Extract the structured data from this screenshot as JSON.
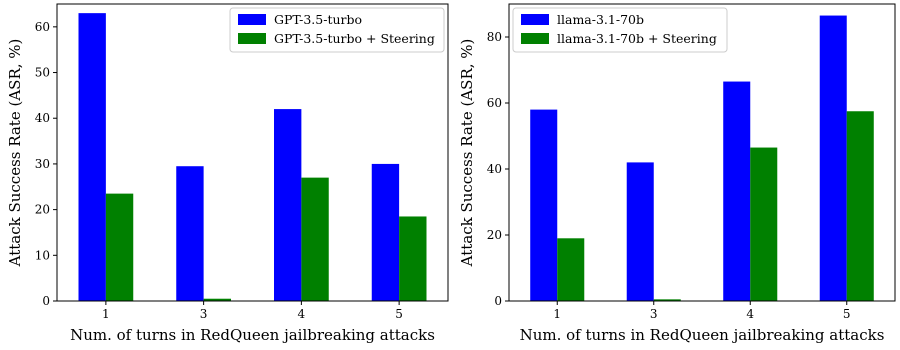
{
  "chart_data": [
    {
      "type": "bar",
      "categories": [
        "1",
        "3",
        "4",
        "5"
      ],
      "series": [
        {
          "name": "GPT-3.5-turbo",
          "color": "#0000ff",
          "values": [
            63.0,
            29.5,
            42.0,
            30.0
          ]
        },
        {
          "name": "GPT-3.5-turbo + Steering",
          "color": "#008000",
          "values": [
            23.5,
            0.5,
            27.0,
            18.5
          ]
        }
      ],
      "xlabel": "Num. of turns in RedQueen jailbreaking attacks",
      "ylabel": "Attack Success Rate (ASR, %)",
      "ylim": [
        0,
        65
      ],
      "yticks": [
        0,
        10,
        20,
        30,
        40,
        50,
        60
      ],
      "ytick_labels": [
        "0",
        "10",
        "20",
        "30",
        "40",
        "50",
        "60"
      ],
      "legend": "top-right",
      "grid": false
    },
    {
      "type": "bar",
      "categories": [
        "1",
        "3",
        "4",
        "5"
      ],
      "series": [
        {
          "name": "llama-3.1-70b",
          "color": "#0000ff",
          "values": [
            58.0,
            42.0,
            66.5,
            86.5
          ]
        },
        {
          "name": "llama-3.1-70b + Steering",
          "color": "#008000",
          "values": [
            19.0,
            0.5,
            46.5,
            57.5
          ]
        }
      ],
      "xlabel": "Num. of turns in RedQueen jailbreaking attacks",
      "ylabel": "Attack Success Rate (ASR, %)",
      "ylim": [
        0,
        90
      ],
      "yticks": [
        0,
        20,
        40,
        60,
        80
      ],
      "ytick_labels": [
        "0",
        "20",
        "40",
        "60",
        "80"
      ],
      "legend": "top-left",
      "grid": false
    }
  ]
}
